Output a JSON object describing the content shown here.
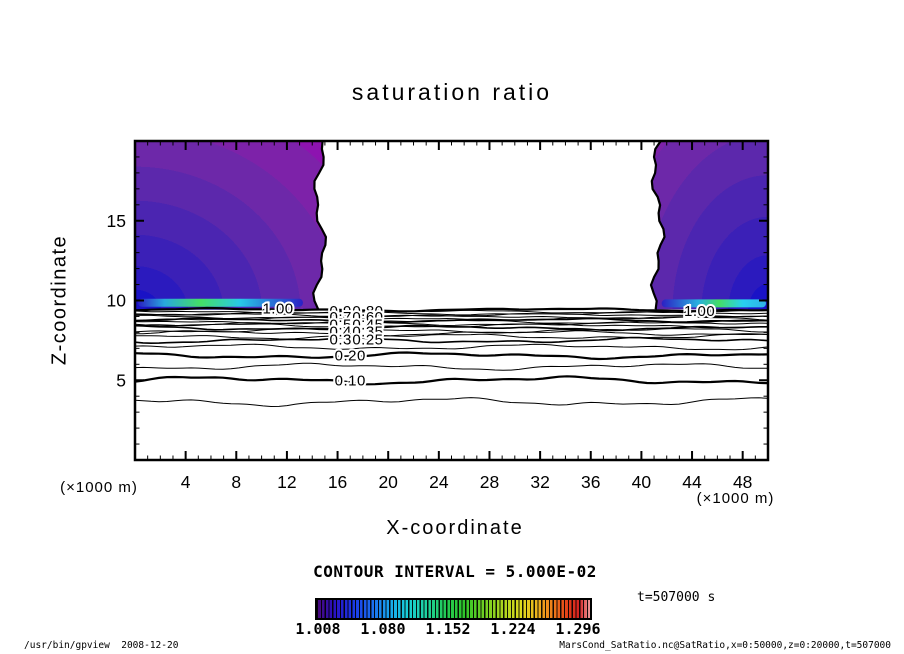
{
  "title": "saturation ratio",
  "axes": {
    "x": {
      "title": "X-coordinate",
      "unit_left": "(×1000 m)",
      "unit_right": "(×1000 m)",
      "min": 0,
      "max": 50,
      "major_tick_step": 4,
      "minor_tick_step": 1,
      "tick_labels": [
        "4",
        "8",
        "12",
        "16",
        "20",
        "24",
        "28",
        "32",
        "36",
        "40",
        "44",
        "48"
      ]
    },
    "z": {
      "title": "Z-coordinate",
      "min": 0,
      "max": 20,
      "major_tick_step": 5,
      "minor_tick_step": 1,
      "tick_labels": [
        "5",
        "10",
        "15"
      ]
    }
  },
  "contour_note": "CONTOUR INTERVAL = 5.000E-02",
  "time_label": "t=507000 s",
  "footer_left": "/usr/bin/gpview  2008-12-20",
  "footer_right": "MarsCond_SatRatio.nc@SatRatio,x=0:50000,z=0:20000,t=507000",
  "colorbar": {
    "labels": [
      "1.008",
      "1.080",
      "1.152",
      "1.224",
      "1.296"
    ],
    "gradient_stops": [
      [
        0,
        "#4a0878"
      ],
      [
        0.06,
        "#2a10c0"
      ],
      [
        0.13,
        "#1b35e8"
      ],
      [
        0.2,
        "#1b6cee"
      ],
      [
        0.27,
        "#18a8ee"
      ],
      [
        0.33,
        "#18cfd8"
      ],
      [
        0.4,
        "#1ed2a0"
      ],
      [
        0.47,
        "#22cc55"
      ],
      [
        0.54,
        "#2fc62a"
      ],
      [
        0.61,
        "#6ed022"
      ],
      [
        0.68,
        "#aad61e"
      ],
      [
        0.75,
        "#e0dc1e"
      ],
      [
        0.81,
        "#eeb01c"
      ],
      [
        0.87,
        "#ee761a"
      ],
      [
        0.92,
        "#e23c18"
      ],
      [
        0.96,
        "#d62222"
      ],
      [
        1,
        "#ee9a9a"
      ]
    ]
  },
  "chart_data": {
    "type": "contour",
    "title": "saturation ratio",
    "xlabel": "X-coordinate (×1000 m)",
    "ylabel": "Z-coordinate (×1000 m)",
    "x_range": [
      0,
      50
    ],
    "z_range": [
      0,
      20
    ],
    "contour_interval": 0.05,
    "time_seconds": 507000,
    "shaded_regions": [
      {
        "desc": "supersaturated region (ratio > 1), color-filled",
        "x": [
          0,
          14.6
        ],
        "z": [
          9.4,
          20
        ]
      },
      {
        "desc": "supersaturated region (ratio > 1), color-filled",
        "x": [
          41.3,
          50
        ],
        "z": [
          9.4,
          20
        ]
      }
    ],
    "region_gradient_stops": [
      [
        0,
        "#1a12c6"
      ],
      [
        0.09,
        "#1a12c6"
      ],
      [
        0.09,
        "#2b1abe"
      ],
      [
        0.18,
        "#2b1abe"
      ],
      [
        0.18,
        "#3b20b7"
      ],
      [
        0.3,
        "#3b20b7"
      ],
      [
        0.3,
        "#4b25b1"
      ],
      [
        0.43,
        "#4b25b1"
      ],
      [
        0.43,
        "#5c28ac"
      ],
      [
        0.56,
        "#5c28ac"
      ],
      [
        0.56,
        "#6d28a9"
      ],
      [
        0.7,
        "#6d28a9"
      ],
      [
        0.7,
        "#7d22a9"
      ],
      [
        0.85,
        "#7d22a9"
      ],
      [
        0.85,
        "#8d13b0"
      ],
      [
        1,
        "#8d13b0"
      ]
    ],
    "strip_gradient_stops": [
      [
        0,
        "#2b20c4"
      ],
      [
        0.16,
        "#28a8dd"
      ],
      [
        0.38,
        "#44dd66"
      ],
      [
        0.62,
        "#28c8e8"
      ],
      [
        1,
        "#2b20c4"
      ]
    ],
    "strip_gradient_stops_right": [
      [
        0,
        "#2b20c4"
      ],
      [
        0.35,
        "#28b0e0"
      ],
      [
        0.55,
        "#44dd66"
      ],
      [
        0.78,
        "#28d0f0"
      ],
      [
        1,
        "#30b0e8"
      ]
    ],
    "contour_lines": [
      {
        "level": 1.0,
        "z": 9.42,
        "w": 2.2,
        "a": 0.8
      },
      {
        "level": 0.95,
        "z": 9.3,
        "w": 1.0,
        "a": 0.8
      },
      {
        "level": 0.9,
        "z": 9.19,
        "w": 1.0,
        "a": 0.8
      },
      {
        "level": 0.85,
        "z": 9.08,
        "w": 1.0,
        "a": 0.9
      },
      {
        "level": 0.8,
        "z": 8.97,
        "w": 1.0,
        "a": 0.9
      },
      {
        "level": 0.75,
        "z": 8.86,
        "w": 1.0,
        "a": 1.0
      },
      {
        "level": 0.7,
        "z": 8.76,
        "w": 1.6,
        "a": 1.0
      },
      {
        "level": 0.65,
        "z": 8.66,
        "w": 1.0,
        "a": 1.0
      },
      {
        "level": 0.6,
        "z": 8.55,
        "w": 1.0,
        "a": 1.1
      },
      {
        "level": 0.55,
        "z": 8.42,
        "w": 1.0,
        "a": 1.1
      },
      {
        "level": 0.5,
        "z": 8.28,
        "w": 1.6,
        "a": 1.2
      },
      {
        "level": 0.45,
        "z": 8.12,
        "w": 1.0,
        "a": 1.2
      },
      {
        "level": 0.4,
        "z": 7.95,
        "w": 1.0,
        "a": 1.3
      },
      {
        "level": 0.35,
        "z": 7.75,
        "w": 1.0,
        "a": 1.3
      },
      {
        "level": 0.3,
        "z": 7.5,
        "w": 1.6,
        "a": 1.4
      },
      {
        "level": 0.25,
        "z": 7.08,
        "w": 1.0,
        "a": 1.5
      },
      {
        "level": 0.2,
        "z": 6.55,
        "w": 2.2,
        "a": 1.6
      },
      {
        "level": 0.15,
        "z": 5.85,
        "w": 1.0,
        "a": 1.8
      },
      {
        "level": 0.1,
        "z": 5.0,
        "w": 2.2,
        "a": 2.0
      },
      {
        "level": 0.05,
        "z": 3.65,
        "w": 1.0,
        "a": 2.2
      }
    ],
    "contour_labels": [
      {
        "t": "1.00",
        "x": 11.3,
        "z": 9.5
      },
      {
        "t": "1.00",
        "x": 44.6,
        "z": 9.35
      },
      {
        "t": "0.90",
        "x": 16.6,
        "z": 9.35
      },
      {
        "t": "0.80",
        "x": 18.4,
        "z": 9.35
      },
      {
        "t": "0.70",
        "x": 16.6,
        "z": 8.95
      },
      {
        "t": "0.60",
        "x": 18.4,
        "z": 8.95
      },
      {
        "t": "0.50",
        "x": 16.6,
        "z": 8.5
      },
      {
        "t": "0.45",
        "x": 18.4,
        "z": 8.5
      },
      {
        "t": "0.40",
        "x": 16.6,
        "z": 8.05
      },
      {
        "t": "0.35",
        "x": 18.4,
        "z": 8.05
      },
      {
        "t": "0.30",
        "x": 16.6,
        "z": 7.55
      },
      {
        "t": "0.25",
        "x": 18.4,
        "z": 7.55
      },
      {
        "t": "0.20",
        "x": 17.0,
        "z": 6.55
      },
      {
        "t": "0.10",
        "x": 17.0,
        "z": 5.0
      }
    ]
  }
}
